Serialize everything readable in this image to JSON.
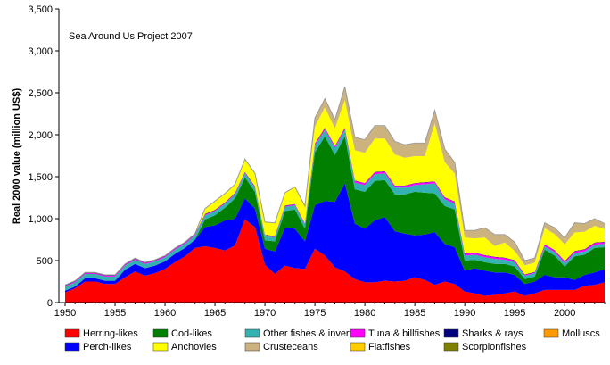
{
  "chart_data": {
    "type": "area",
    "stacked": true,
    "annotation": "Sea Around Us Project 2007",
    "ylabel": "Real 2000 value (million US$)",
    "xlabel": "",
    "xlim": [
      1950,
      2004
    ],
    "ylim": [
      0,
      3500
    ],
    "x_ticks": [
      1950,
      1955,
      1960,
      1965,
      1970,
      1975,
      1980,
      1985,
      1990,
      1995,
      2000
    ],
    "x_tick_labels": [
      "1950",
      "1955",
      "1960",
      "1965",
      "1970",
      "1975",
      "1980",
      "1985",
      "1990",
      "1995",
      "2000"
    ],
    "y_ticks": [
      0,
      500,
      1000,
      1500,
      2000,
      2500,
      3000,
      3500
    ],
    "y_tick_labels": [
      "0",
      "500",
      "1,000",
      "1,500",
      "2,000",
      "2,500",
      "3,000",
      "3,500"
    ],
    "x": [
      1950,
      1951,
      1952,
      1953,
      1954,
      1955,
      1956,
      1957,
      1958,
      1959,
      1960,
      1961,
      1962,
      1963,
      1964,
      1965,
      1966,
      1967,
      1968,
      1969,
      1970,
      1971,
      1972,
      1973,
      1974,
      1975,
      1976,
      1977,
      1978,
      1979,
      1980,
      1981,
      1982,
      1983,
      1984,
      1985,
      1986,
      1987,
      1988,
      1989,
      1990,
      1991,
      1992,
      1993,
      1994,
      1995,
      1996,
      1997,
      1998,
      1999,
      2000,
      2001,
      2002,
      2003,
      2004
    ],
    "series": [
      {
        "name": "Herring-likes",
        "color": "#ff0000",
        "values": [
          120,
          170,
          250,
          250,
          220,
          220,
          300,
          370,
          320,
          350,
          400,
          480,
          550,
          650,
          670,
          650,
          620,
          680,
          990,
          900,
          450,
          340,
          440,
          410,
          400,
          640,
          560,
          420,
          370,
          280,
          240,
          240,
          260,
          250,
          260,
          300,
          270,
          210,
          250,
          220,
          130,
          110,
          80,
          90,
          110,
          130,
          80,
          110,
          150,
          150,
          150,
          150,
          200,
          210,
          240
        ]
      },
      {
        "name": "Perch-likes",
        "color": "#0000ff",
        "values": [
          20,
          20,
          40,
          40,
          40,
          40,
          90,
          90,
          90,
          90,
          90,
          100,
          100,
          100,
          230,
          270,
          360,
          320,
          250,
          220,
          190,
          270,
          450,
          470,
          330,
          520,
          650,
          780,
          1050,
          660,
          640,
          740,
          760,
          600,
          560,
          500,
          540,
          630,
          450,
          440,
          250,
          300,
          300,
          270,
          250,
          200,
          140,
          140,
          180,
          150,
          150,
          120,
          130,
          150,
          160
        ]
      },
      {
        "name": "Cod-likes",
        "color": "#007f00",
        "values": [
          0,
          0,
          0,
          0,
          0,
          0,
          0,
          0,
          0,
          0,
          0,
          0,
          0,
          0,
          90,
          120,
          150,
          240,
          250,
          200,
          100,
          120,
          200,
          230,
          150,
          630,
          770,
          560,
          560,
          410,
          440,
          470,
          440,
          440,
          470,
          520,
          500,
          460,
          450,
          450,
          120,
          100,
          100,
          100,
          100,
          100,
          60,
          60,
          300,
          260,
          130,
          280,
          240,
          290,
          260
        ]
      },
      {
        "name": "Other fishes & inverts",
        "color": "#33b2b2",
        "values": [
          50,
          50,
          50,
          50,
          50,
          50,
          50,
          50,
          50,
          50,
          50,
          50,
          50,
          50,
          50,
          50,
          50,
          50,
          50,
          50,
          50,
          50,
          50,
          50,
          50,
          80,
          80,
          80,
          80,
          80,
          80,
          80,
          80,
          80,
          80,
          80,
          100,
          120,
          80,
          70,
          60,
          60,
          60,
          60,
          50,
          50,
          40,
          40,
          40,
          40,
          40,
          40,
          40,
          40,
          40
        ]
      },
      {
        "name": "Tuna & billfishes",
        "color": "#ff00ff",
        "values": [
          10,
          10,
          10,
          10,
          10,
          10,
          10,
          10,
          10,
          10,
          10,
          10,
          10,
          10,
          10,
          10,
          10,
          10,
          10,
          10,
          10,
          10,
          10,
          10,
          10,
          20,
          20,
          20,
          20,
          20,
          20,
          20,
          20,
          20,
          20,
          20,
          20,
          20,
          20,
          20,
          20,
          20,
          20,
          20,
          20,
          20,
          10,
          10,
          20,
          20,
          20,
          20,
          20,
          20,
          20
        ]
      },
      {
        "name": "Sharks & rays",
        "color": "#00007f",
        "values": [
          5,
          5,
          5,
          5,
          5,
          5,
          5,
          5,
          5,
          5,
          5,
          5,
          5,
          5,
          5,
          5,
          5,
          5,
          5,
          5,
          5,
          5,
          5,
          5,
          5,
          5,
          5,
          5,
          5,
          5,
          5,
          5,
          5,
          5,
          5,
          5,
          5,
          5,
          5,
          5,
          5,
          5,
          5,
          5,
          5,
          5,
          5,
          5,
          5,
          5,
          5,
          5,
          5,
          5,
          5
        ]
      },
      {
        "name": "Molluscs",
        "color": "#ff9900",
        "values": [
          0,
          0,
          0,
          0,
          0,
          0,
          0,
          0,
          0,
          0,
          0,
          0,
          0,
          0,
          0,
          0,
          0,
          0,
          0,
          0,
          0,
          0,
          0,
          0,
          0,
          0,
          0,
          0,
          0,
          0,
          0,
          0,
          0,
          0,
          0,
          0,
          0,
          0,
          0,
          0,
          0,
          0,
          0,
          0,
          0,
          0,
          0,
          0,
          0,
          0,
          0,
          0,
          0,
          0,
          0
        ]
      },
      {
        "name": "Anchovies",
        "color": "#ffff00",
        "values": [
          0,
          0,
          0,
          0,
          0,
          0,
          0,
          0,
          0,
          0,
          0,
          0,
          0,
          0,
          60,
          100,
          100,
          100,
          150,
          150,
          150,
          150,
          150,
          200,
          200,
          200,
          240,
          210,
          330,
          360,
          360,
          400,
          390,
          370,
          330,
          320,
          310,
          690,
          420,
          330,
          190,
          170,
          210,
          130,
          180,
          110,
          110,
          110,
          190,
          190,
          200,
          220,
          210,
          200,
          150
        ]
      },
      {
        "name": "Crusteceans",
        "color": "#ccb27f",
        "values": [
          0,
          0,
          0,
          0,
          0,
          0,
          0,
          0,
          0,
          0,
          0,
          0,
          0,
          0,
          0,
          0,
          0,
          0,
          0,
          0,
          0,
          0,
          0,
          0,
          0,
          100,
          100,
          100,
          150,
          150,
          150,
          150,
          150,
          150,
          150,
          150,
          150,
          150,
          150,
          130,
          80,
          90,
          110,
          130,
          90,
          100,
          50,
          50,
          60,
          70,
          70,
          110,
          90,
          80,
          60
        ]
      },
      {
        "name": "Flatfishes",
        "color": "#ffcc00",
        "values": [
          5,
          5,
          5,
          5,
          5,
          5,
          5,
          5,
          5,
          5,
          5,
          5,
          5,
          5,
          5,
          5,
          5,
          5,
          5,
          5,
          5,
          5,
          5,
          5,
          5,
          5,
          5,
          5,
          5,
          5,
          5,
          5,
          5,
          5,
          5,
          5,
          5,
          5,
          5,
          5,
          5,
          5,
          5,
          5,
          5,
          5,
          5,
          5,
          5,
          5,
          5,
          5,
          5,
          5,
          5
        ]
      },
      {
        "name": "Scorpionfishes",
        "color": "#7f7f00",
        "values": [
          0,
          0,
          0,
          0,
          0,
          0,
          0,
          0,
          0,
          0,
          0,
          0,
          0,
          0,
          0,
          0,
          0,
          0,
          0,
          0,
          0,
          0,
          0,
          0,
          0,
          0,
          0,
          0,
          0,
          0,
          0,
          0,
          0,
          0,
          0,
          0,
          0,
          0,
          0,
          0,
          0,
          0,
          0,
          0,
          0,
          0,
          0,
          0,
          0,
          0,
          0,
          0,
          0,
          0,
          0
        ]
      }
    ],
    "legend": {
      "placement": "bottom",
      "entries": [
        {
          "label": "Herring-likes",
          "color": "#ff0000"
        },
        {
          "label": "Cod-likes",
          "color": "#007f00"
        },
        {
          "label": "Other fishes & inverts",
          "color": "#33b2b2"
        },
        {
          "label": "Tuna & billfishes",
          "color": "#ff00ff"
        },
        {
          "label": "Sharks & rays",
          "color": "#00007f"
        },
        {
          "label": "Molluscs",
          "color": "#ff9900"
        },
        {
          "label": "Perch-likes",
          "color": "#0000ff"
        },
        {
          "label": "Anchovies",
          "color": "#ffff00"
        },
        {
          "label": "Crusteceans",
          "color": "#ccb27f"
        },
        {
          "label": "Flatfishes",
          "color": "#ffcc00"
        },
        {
          "label": "Scorpionfishes",
          "color": "#7f7f00"
        }
      ]
    },
    "grid": false
  }
}
